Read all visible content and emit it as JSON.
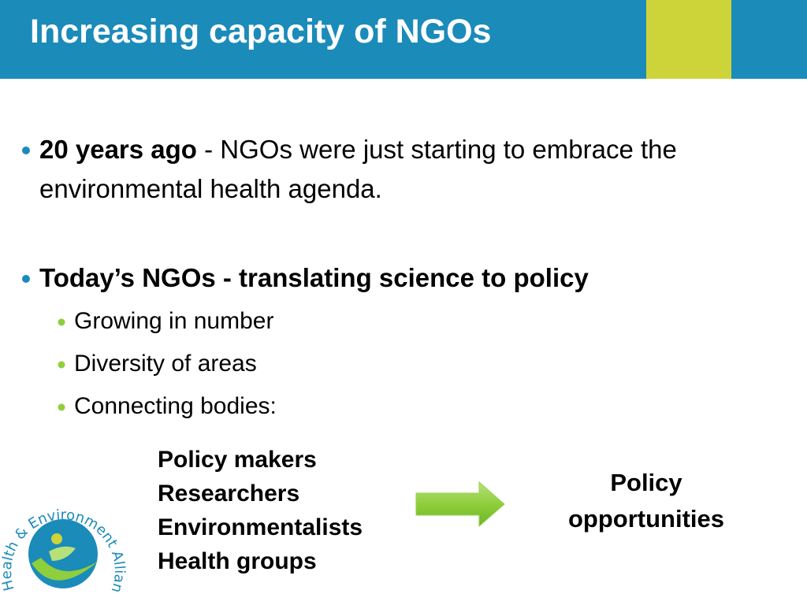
{
  "header": {
    "title": "Increasing capacity of NGOs"
  },
  "bullets": [
    {
      "lead": "20 years ago",
      "text": " - NGOs were just starting to embrace the environmental health agenda."
    },
    {
      "lead": "Today’s NGOs - translating science to policy",
      "subitems": [
        "Growing in number",
        "Diversity of areas",
        "Connecting bodies:"
      ]
    }
  ],
  "groups": [
    "Policy makers",
    "Researchers",
    "Environmentalists",
    "Health groups"
  ],
  "outcome": "Policy opportunities",
  "logo": {
    "text": "Health & Environment Alliance"
  }
}
